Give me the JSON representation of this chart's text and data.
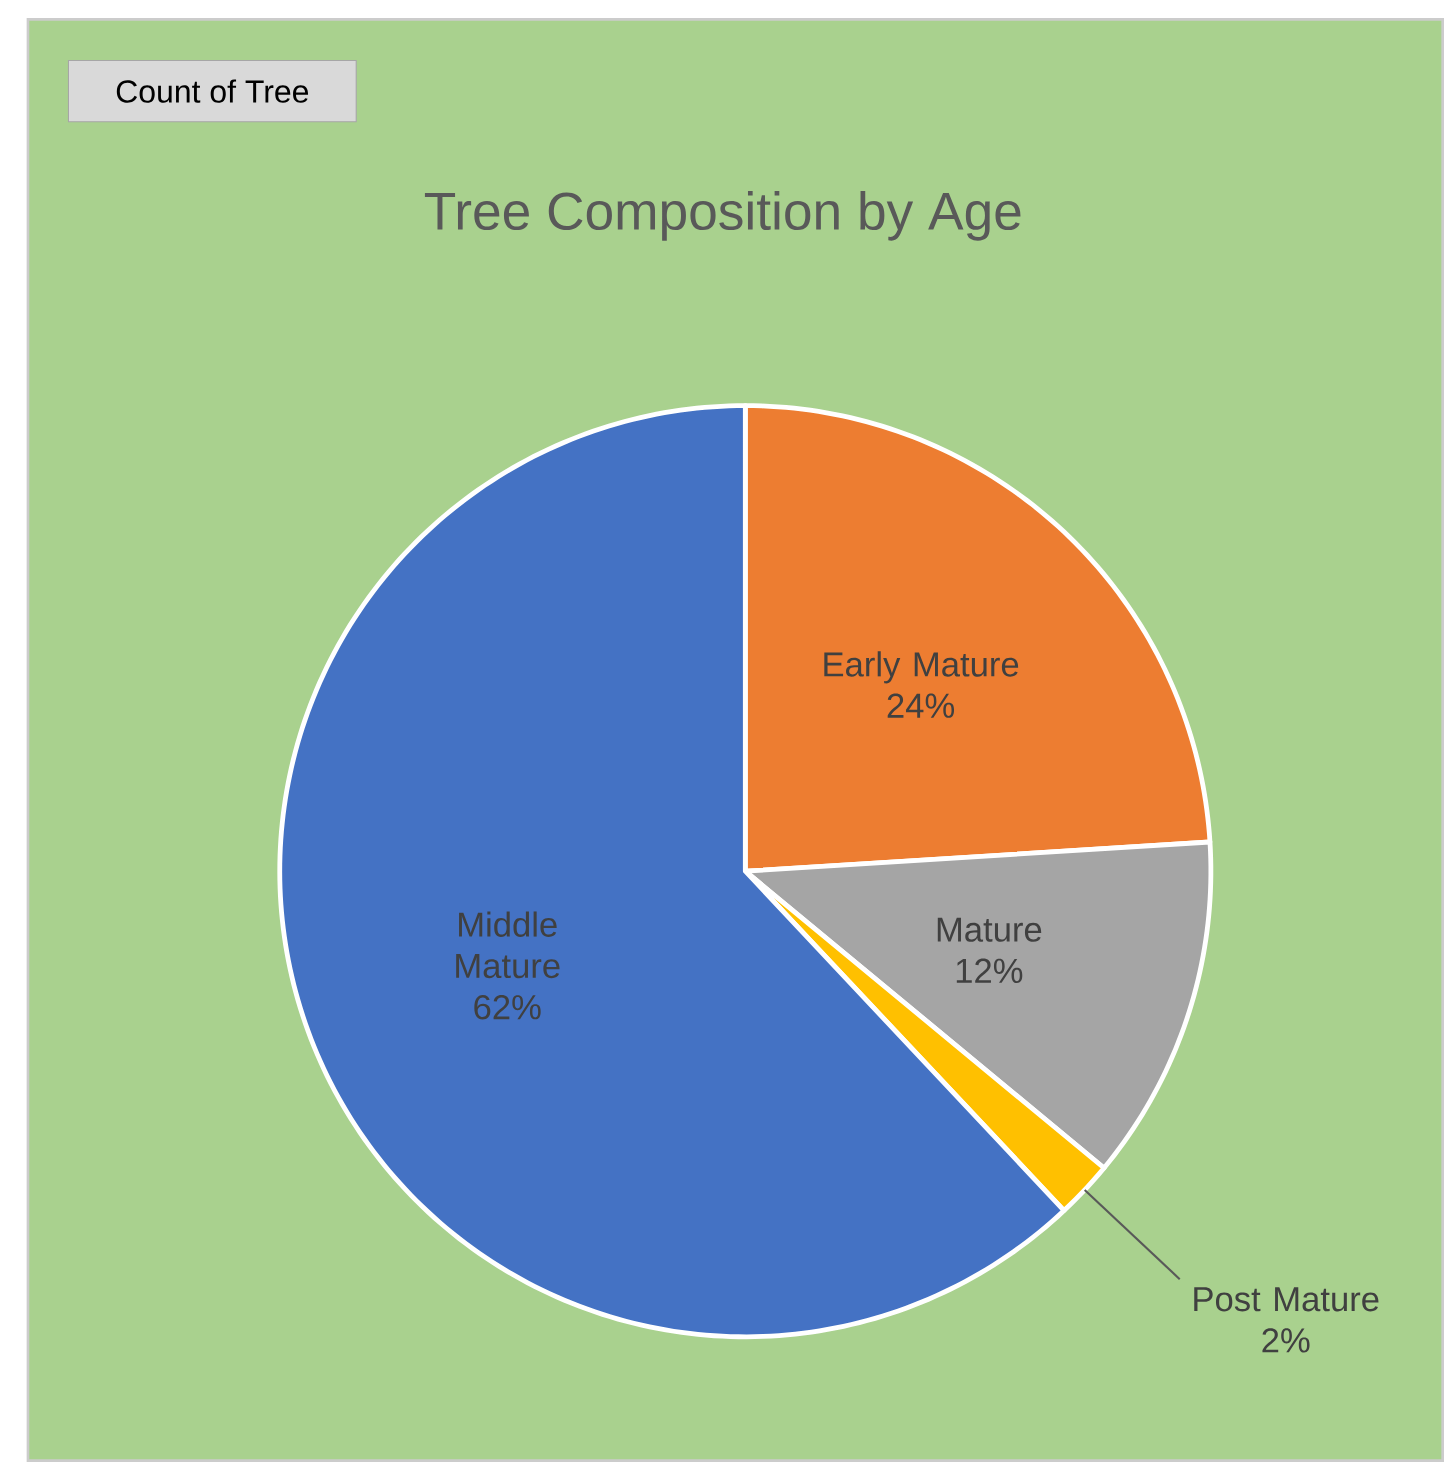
{
  "chart_data": {
    "type": "pie",
    "title": "Tree Composition by Age",
    "categories": [
      "Early Mature",
      "Mature",
      "Post Mature",
      "Middle Mature"
    ],
    "values": [
      24,
      12,
      2,
      62
    ],
    "value_labels": [
      "24%",
      "12%",
      "2%",
      "62%"
    ],
    "colors": [
      "#ed7d31",
      "#a5a5a5",
      "#ffc000",
      "#4472c4"
    ],
    "annotations": [
      "Count of Tree"
    ]
  }
}
